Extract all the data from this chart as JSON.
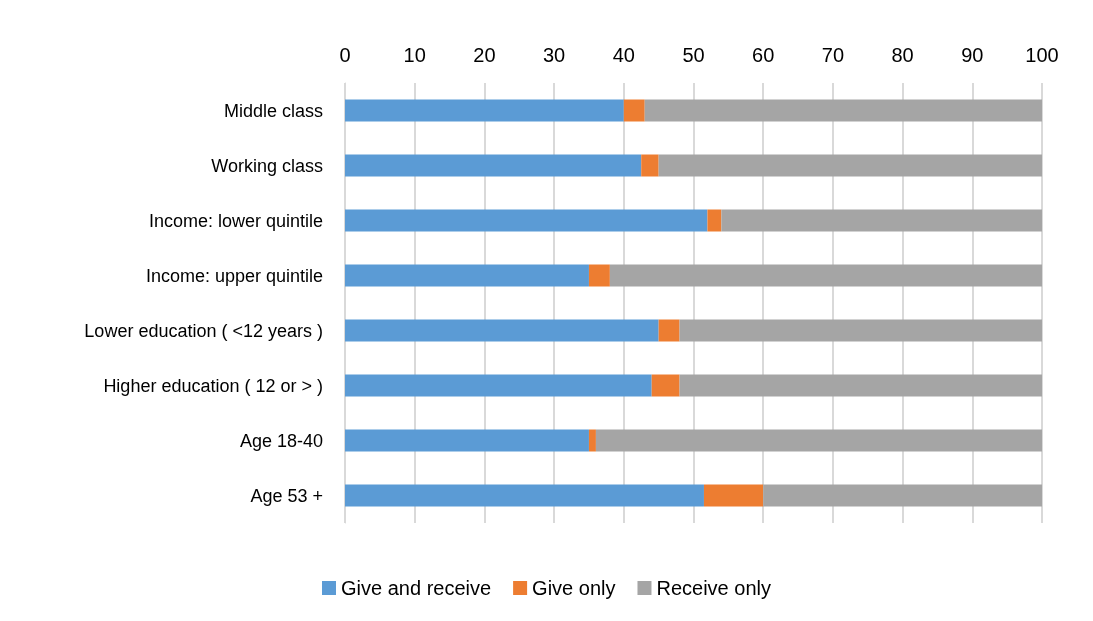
{
  "chart_data": {
    "type": "bar",
    "orientation": "horizontal",
    "stacked": true,
    "categories": [
      "Middle class",
      "Working class",
      "Income: lower quintile",
      "Income: upper quintile",
      "Lower education ( <12 years )",
      "Higher education ( 12 or > )",
      "Age 18-40",
      "Age 53 +"
    ],
    "series": [
      {
        "name": "Give and receive",
        "color": "#5b9bd5",
        "values": [
          40,
          42.5,
          52,
          35,
          45,
          44,
          35,
          51.5
        ]
      },
      {
        "name": "Give only",
        "color": "#ed7d31",
        "values": [
          3,
          2.5,
          2,
          3,
          3,
          4,
          1,
          8.5
        ]
      },
      {
        "name": "Receive only",
        "color": "#a5a5a5",
        "values": [
          57,
          55,
          46,
          62,
          52,
          52,
          64,
          40
        ]
      }
    ],
    "xlim": [
      0,
      100
    ],
    "xticks": [
      0,
      10,
      20,
      30,
      40,
      50,
      60,
      70,
      80,
      90,
      100
    ],
    "grid": "x",
    "legend": "bottom"
  }
}
